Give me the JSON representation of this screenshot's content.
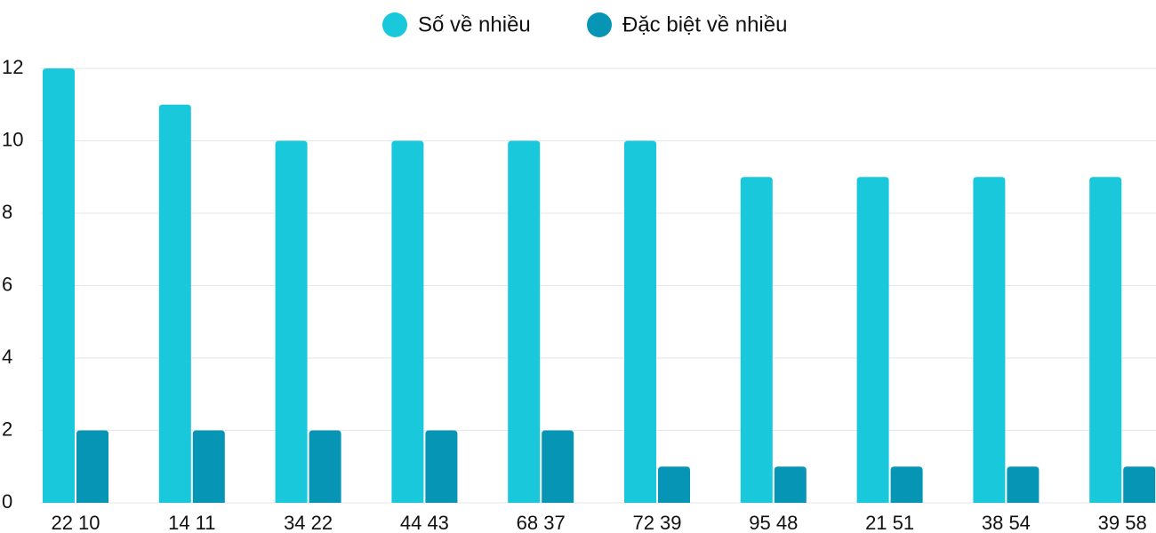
{
  "chart_data": {
    "type": "bar",
    "categories": [
      "22 10",
      "14 11",
      "34 22",
      "44 43",
      "68 37",
      "72 39",
      "95 48",
      "21 51",
      "38 54",
      "39 58"
    ],
    "series": [
      {
        "name": "Số về nhiều",
        "color": "#1ac8db",
        "values": [
          12,
          11,
          10,
          10,
          10,
          10,
          9,
          9,
          9,
          9
        ]
      },
      {
        "name": "Đặc biệt về nhiều",
        "color": "#0795b6",
        "values": [
          2,
          2,
          2,
          2,
          2,
          1,
          1,
          1,
          1,
          1
        ]
      }
    ],
    "ylim": [
      0,
      12
    ],
    "yticks": [
      0,
      2,
      4,
      6,
      8,
      10,
      12
    ],
    "grid": true
  }
}
